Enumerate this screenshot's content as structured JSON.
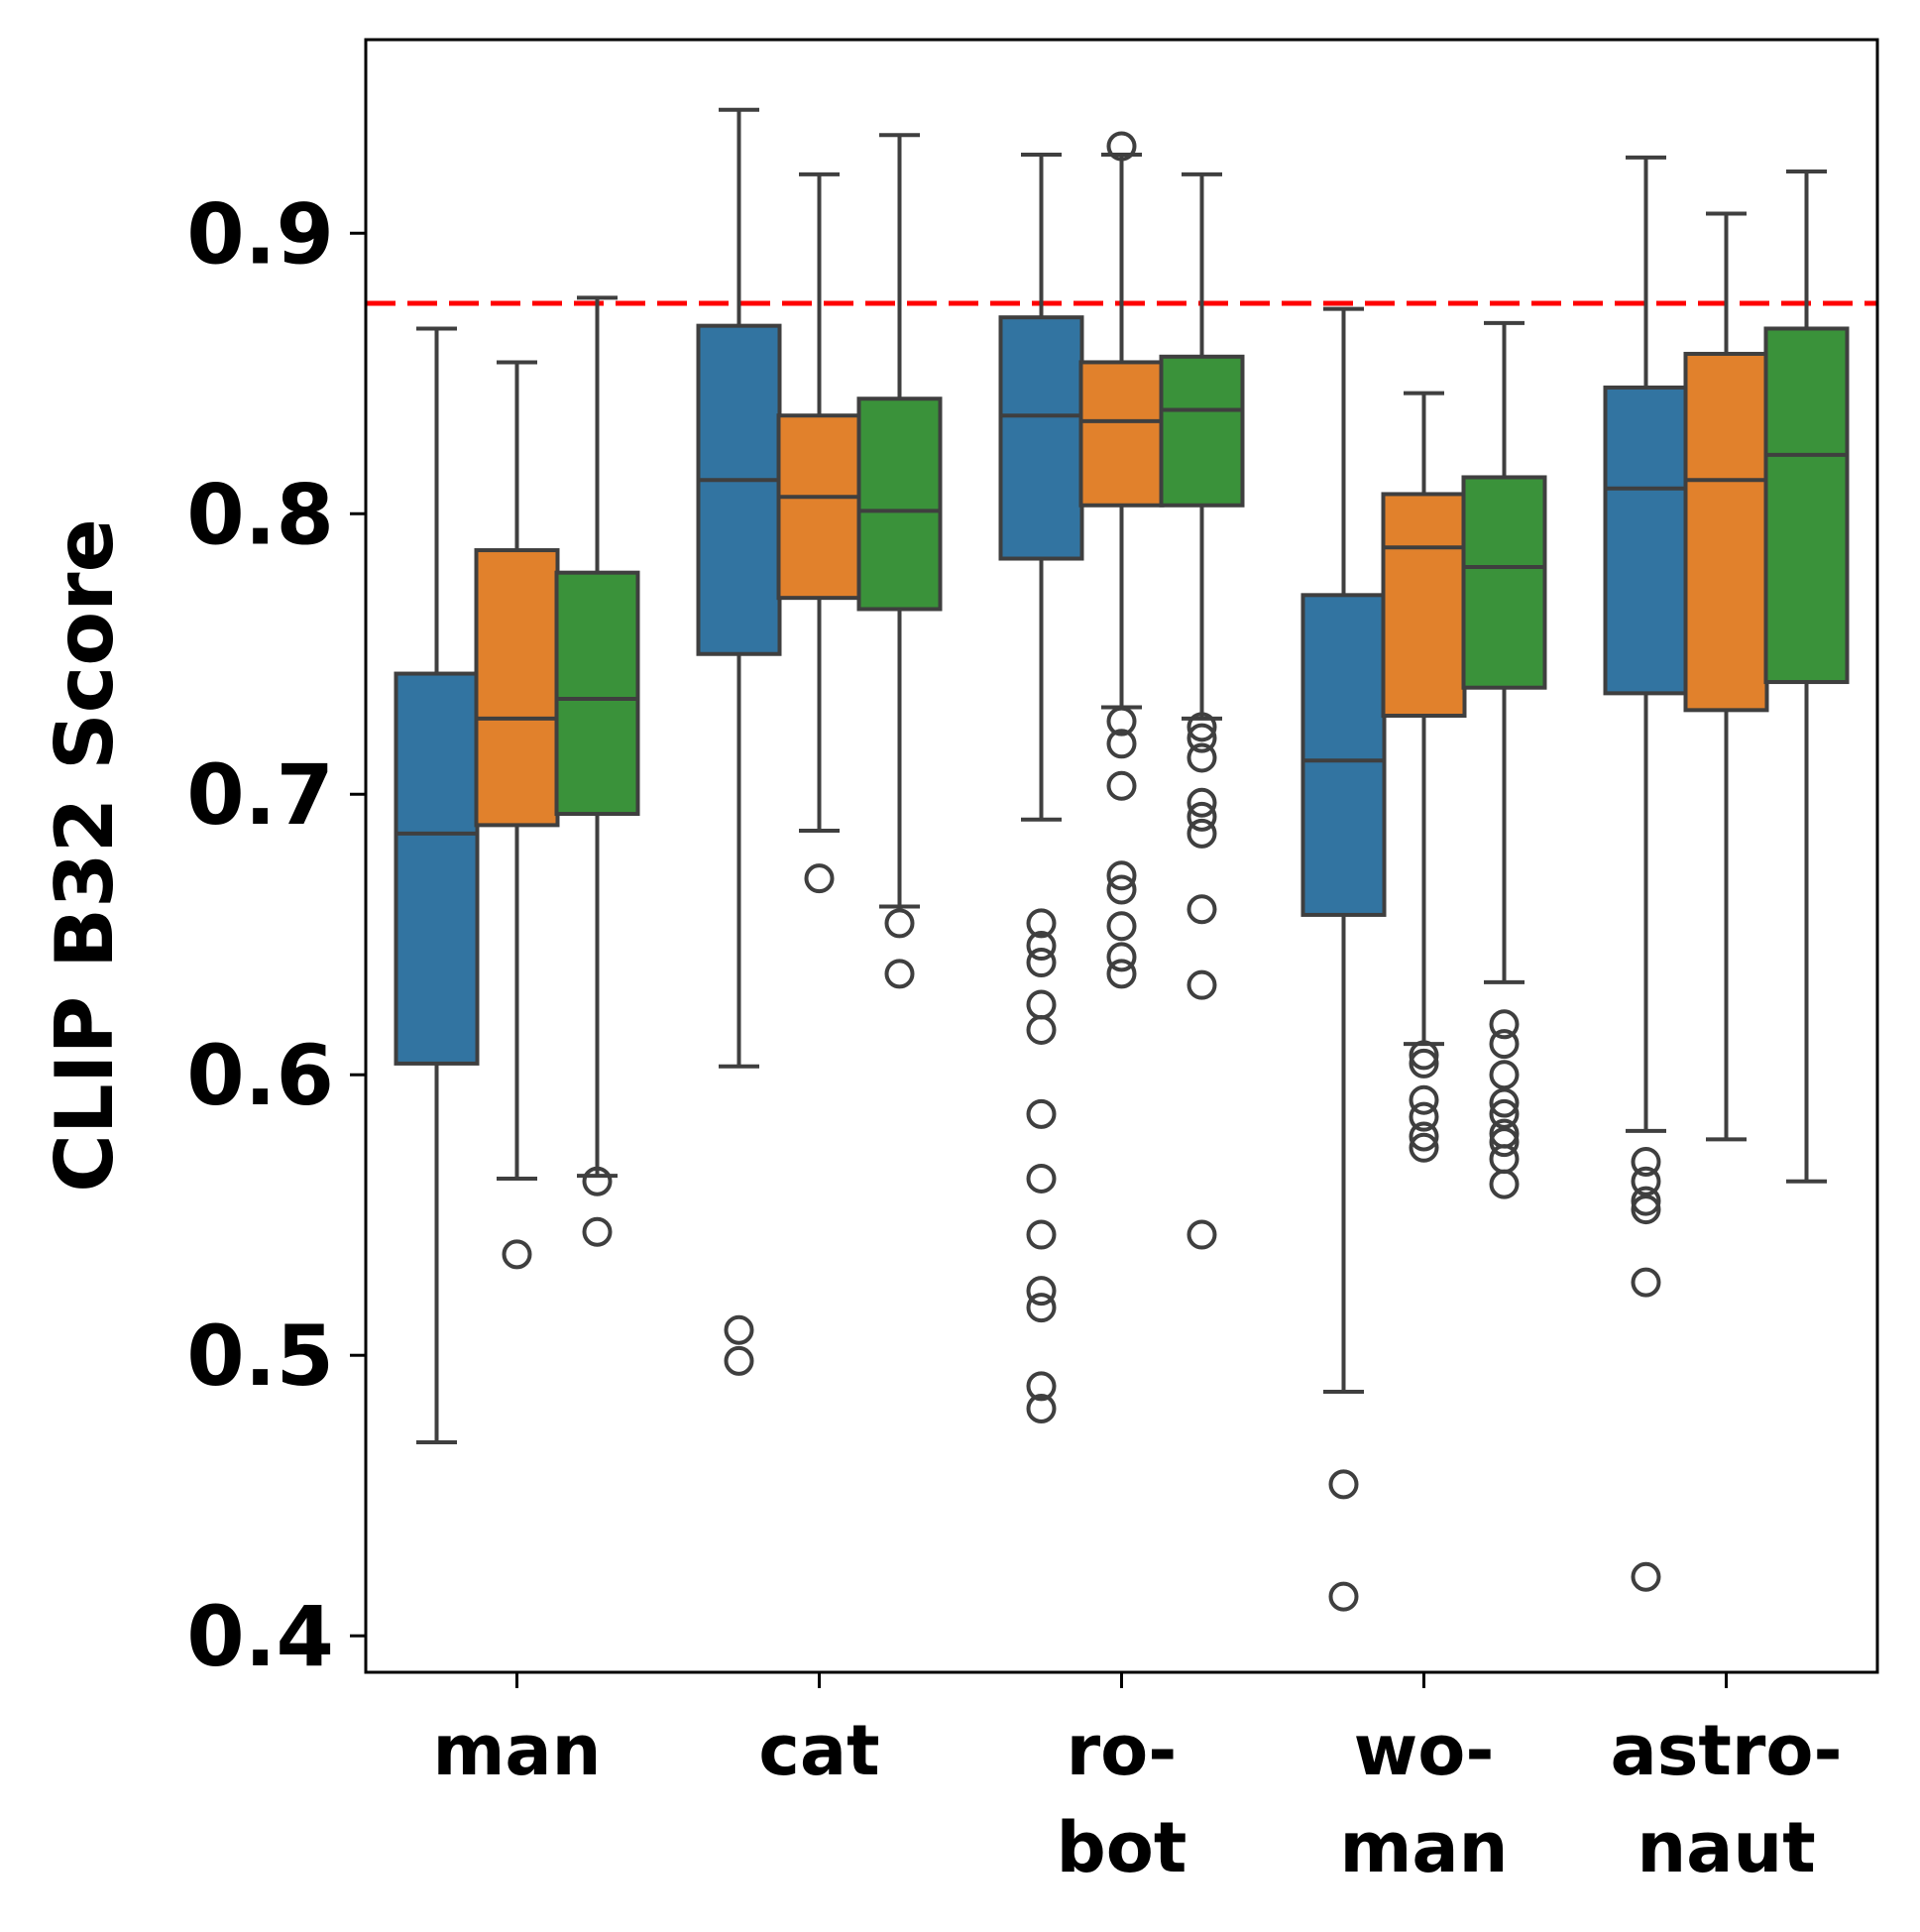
{
  "chart_data": {
    "type": "box",
    "ylabel": "CLIP B32 Score",
    "xlabel": "",
    "ylim": [
      0.387,
      0.969
    ],
    "yticks": [
      0.4,
      0.5,
      0.6,
      0.7,
      0.8,
      0.9
    ],
    "ytick_labels": [
      "0.4",
      "0.5",
      "0.6",
      "0.7",
      "0.8",
      "0.9"
    ],
    "categories": [
      {
        "id": "man",
        "lines": [
          "man"
        ]
      },
      {
        "id": "cat",
        "lines": [
          "cat"
        ]
      },
      {
        "id": "robot",
        "lines": [
          "ro-",
          "bot"
        ]
      },
      {
        "id": "woman",
        "lines": [
          "wo-",
          "man"
        ]
      },
      {
        "id": "astronaut",
        "lines": [
          "astro-",
          "naut"
        ]
      }
    ],
    "series_colors": [
      "#3274a1",
      "#e1812c",
      "#3a923a"
    ],
    "reference_line": {
      "y": 0.875,
      "color": "#ff0000",
      "style": "dashed"
    },
    "groups": [
      {
        "category": "man",
        "boxes": [
          {
            "whislo": 0.469,
            "q1": 0.604,
            "med": 0.686,
            "q3": 0.743,
            "whishi": 0.866,
            "fliers": []
          },
          {
            "whislo": 0.563,
            "q1": 0.689,
            "med": 0.727,
            "q3": 0.787,
            "whishi": 0.854,
            "fliers": [
              0.536
            ]
          },
          {
            "whislo": 0.564,
            "q1": 0.693,
            "med": 0.734,
            "q3": 0.779,
            "whishi": 0.877,
            "fliers": [
              0.562,
              0.544
            ]
          }
        ]
      },
      {
        "category": "cat",
        "boxes": [
          {
            "whislo": 0.603,
            "q1": 0.75,
            "med": 0.812,
            "q3": 0.867,
            "whishi": 0.944,
            "fliers": [
              0.509,
              0.498
            ]
          },
          {
            "whislo": 0.687,
            "q1": 0.77,
            "med": 0.806,
            "q3": 0.835,
            "whishi": 0.921,
            "fliers": [
              0.67
            ]
          },
          {
            "whislo": 0.66,
            "q1": 0.766,
            "med": 0.801,
            "q3": 0.841,
            "whishi": 0.935,
            "fliers": [
              0.654,
              0.636
            ]
          }
        ]
      },
      {
        "category": "robot",
        "boxes": [
          {
            "whislo": 0.691,
            "q1": 0.784,
            "med": 0.835,
            "q3": 0.87,
            "whishi": 0.928,
            "fliers": [
              0.654,
              0.646,
              0.64,
              0.625,
              0.616,
              0.586,
              0.563,
              0.543,
              0.523,
              0.517,
              0.489,
              0.481
            ]
          },
          {
            "whislo": 0.731,
            "q1": 0.803,
            "med": 0.833,
            "q3": 0.854,
            "whishi": 0.928,
            "fliers": [
              0.931,
              0.726,
              0.718,
              0.703,
              0.671,
              0.666,
              0.653,
              0.642,
              0.636
            ]
          },
          {
            "whislo": 0.727,
            "q1": 0.803,
            "med": 0.837,
            "q3": 0.856,
            "whishi": 0.921,
            "fliers": [
              0.724,
              0.72,
              0.713,
              0.697,
              0.692,
              0.686,
              0.659,
              0.632,
              0.543
            ]
          }
        ]
      },
      {
        "category": "woman",
        "boxes": [
          {
            "whislo": 0.487,
            "q1": 0.657,
            "med": 0.712,
            "q3": 0.771,
            "whishi": 0.873,
            "fliers": [
              0.454,
              0.414
            ]
          },
          {
            "whislo": 0.611,
            "q1": 0.728,
            "med": 0.788,
            "q3": 0.807,
            "whishi": 0.843,
            "fliers": [
              0.607,
              0.604,
              0.591,
              0.585,
              0.578,
              0.574
            ]
          },
          {
            "whislo": 0.633,
            "q1": 0.738,
            "med": 0.781,
            "q3": 0.813,
            "whishi": 0.868,
            "fliers": [
              0.618,
              0.611,
              0.6,
              0.59,
              0.586,
              0.579,
              0.576,
              0.57,
              0.561
            ]
          }
        ]
      },
      {
        "category": "astronaut",
        "boxes": [
          {
            "whislo": 0.58,
            "q1": 0.736,
            "med": 0.809,
            "q3": 0.845,
            "whishi": 0.927,
            "fliers": [
              0.569,
              0.562,
              0.555,
              0.552,
              0.526,
              0.421
            ]
          },
          {
            "whislo": 0.577,
            "q1": 0.73,
            "med": 0.812,
            "q3": 0.857,
            "whishi": 0.907,
            "fliers": []
          },
          {
            "whislo": 0.562,
            "q1": 0.74,
            "med": 0.821,
            "q3": 0.866,
            "whishi": 0.922,
            "fliers": []
          }
        ]
      }
    ]
  }
}
